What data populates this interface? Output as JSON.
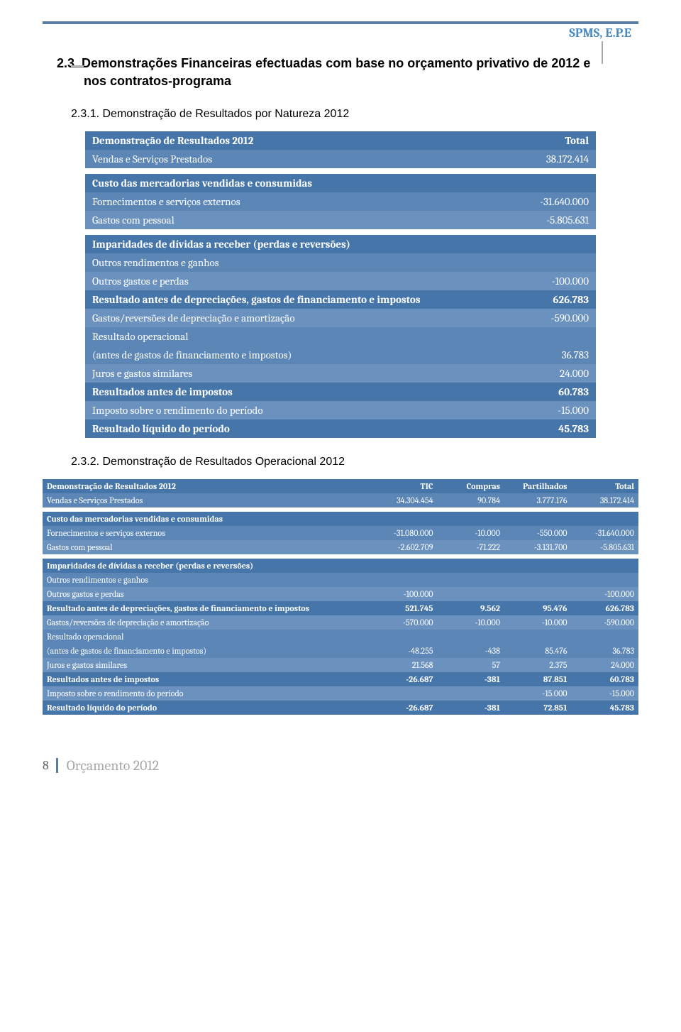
{
  "header": {
    "org": "SPMS, E.P.E"
  },
  "section": {
    "number": "2.3.",
    "title_line1": "Demonstrações Financeiras efectuadas com base no orçamento privativo de 2012 e",
    "title_line2": "nos contratos-programa"
  },
  "sub1": {
    "number": "2.3.1.",
    "title": "Demonstração de Resultados por Natureza 2012"
  },
  "sub2": {
    "number": "2.3.2.",
    "title": "Demonstração de Resultados Operacional 2012"
  },
  "table1": {
    "header_label": "Demonstração de Resultados  2012",
    "header_total": "Total",
    "rows": [
      {
        "style": "row-mid",
        "label": "Vendas e Serviços Prestados",
        "val": "38.172.414"
      },
      {
        "style": "spacer"
      },
      {
        "style": "row-dark",
        "label": "Custo das mercadorias vendidas e consumidas",
        "val": ""
      },
      {
        "style": "row-mid",
        "label": "Fornecimentos e serviços externos",
        "val": "-31.640.000"
      },
      {
        "style": "row-light",
        "label": "Gastos com pessoal",
        "val": "-5.805.631"
      },
      {
        "style": "spacer"
      },
      {
        "style": "row-dark",
        "label": "Imparidades de dívidas a receber (perdas e reversões)",
        "val": ""
      },
      {
        "style": "row-mid",
        "label": "Outros rendimentos e ganhos",
        "val": ""
      },
      {
        "style": "row-light",
        "label": "Outros gastos e perdas",
        "val": "-100.000"
      },
      {
        "style": "row-dark",
        "label": "Resultado antes de depreciações, gastos de financiamento e impostos",
        "val": "626.783"
      },
      {
        "style": "row-light",
        "label": "Gastos/reversões de depreciação e amortização",
        "val": "-590.000"
      },
      {
        "style": "row-mid",
        "label": "Resultado operacional",
        "val": ""
      },
      {
        "style": "row-mid",
        "label": "(antes de gastos de financiamento e impostos)",
        "val": "36.783"
      },
      {
        "style": "row-light",
        "label": "Juros e gastos similares",
        "val": "24.000"
      },
      {
        "style": "row-dark",
        "label": "Resultados antes de impostos",
        "val": "60.783"
      },
      {
        "style": "row-light",
        "label": "Imposto sobre o rendimento do período",
        "val": "-15.000"
      },
      {
        "style": "row-dark",
        "label": "Resultado líquido do período",
        "val": "45.783"
      }
    ]
  },
  "table2": {
    "header_label": "Demonstração de Resultados  2012",
    "cols": [
      "TIC",
      "Compras",
      "Partilhados",
      "Total"
    ],
    "rows": [
      {
        "style": "row-mid",
        "label": "Vendas e Serviços Prestados",
        "v": [
          "34.304.454",
          "90.784",
          "3.777.176",
          "38.172.414"
        ]
      },
      {
        "style": "spacer"
      },
      {
        "style": "row-dark",
        "label": "Custo das mercadorias vendidas e consumidas",
        "v": [
          "",
          "",
          "",
          ""
        ]
      },
      {
        "style": "row-mid",
        "label": "Fornecimentos e serviços externos",
        "v": [
          "-31.080.000",
          "-10.000",
          "-550.000",
          "-31.640.000"
        ]
      },
      {
        "style": "row-light",
        "label": "Gastos com pessoal",
        "v": [
          "-2.602.709",
          "-71.222",
          "-3.131.700",
          "-5.805.631"
        ]
      },
      {
        "style": "spacer"
      },
      {
        "style": "row-dark",
        "label": "Imparidades de dívidas a receber (perdas e reversões)",
        "v": [
          "",
          "",
          "",
          ""
        ]
      },
      {
        "style": "row-mid",
        "label": "Outros rendimentos e ganhos",
        "v": [
          "",
          "",
          "",
          ""
        ]
      },
      {
        "style": "row-light",
        "label": "Outros gastos e perdas",
        "v": [
          "-100.000",
          "",
          "",
          "-100.000"
        ]
      },
      {
        "style": "row-dark",
        "label": "Resultado antes de depreciações, gastos de financiamento e impostos",
        "v": [
          "521.745",
          "9.562",
          "95.476",
          "626.783"
        ]
      },
      {
        "style": "row-light",
        "label": "Gastos/reversões de depreciação e amortização",
        "v": [
          "-570.000",
          "-10.000",
          "-10.000",
          "-590.000"
        ]
      },
      {
        "style": "row-mid",
        "label": "Resultado operacional",
        "v": [
          "",
          "",
          "",
          ""
        ]
      },
      {
        "style": "row-mid",
        "label": "(antes de gastos de financiamento e impostos)",
        "v": [
          "-48.255",
          "-438",
          "85.476",
          "36.783"
        ]
      },
      {
        "style": "row-light",
        "label": "Juros e gastos similares",
        "v": [
          "21.568",
          "57",
          "2.375",
          "24.000"
        ]
      },
      {
        "style": "row-dark",
        "label": "Resultados antes de impostos",
        "v": [
          "-26.687",
          "-381",
          "87.851",
          "60.783"
        ]
      },
      {
        "style": "row-light",
        "label": "Imposto sobre o rendimento do período",
        "v": [
          "",
          "",
          "-15.000",
          "-15.000"
        ]
      },
      {
        "style": "row-dark",
        "label": "Resultado líquido do período",
        "v": [
          "-26.687",
          "-381",
          "72.851",
          "45.783"
        ]
      }
    ]
  },
  "footer": {
    "page": "8",
    "text": "Orçamento 2012"
  }
}
